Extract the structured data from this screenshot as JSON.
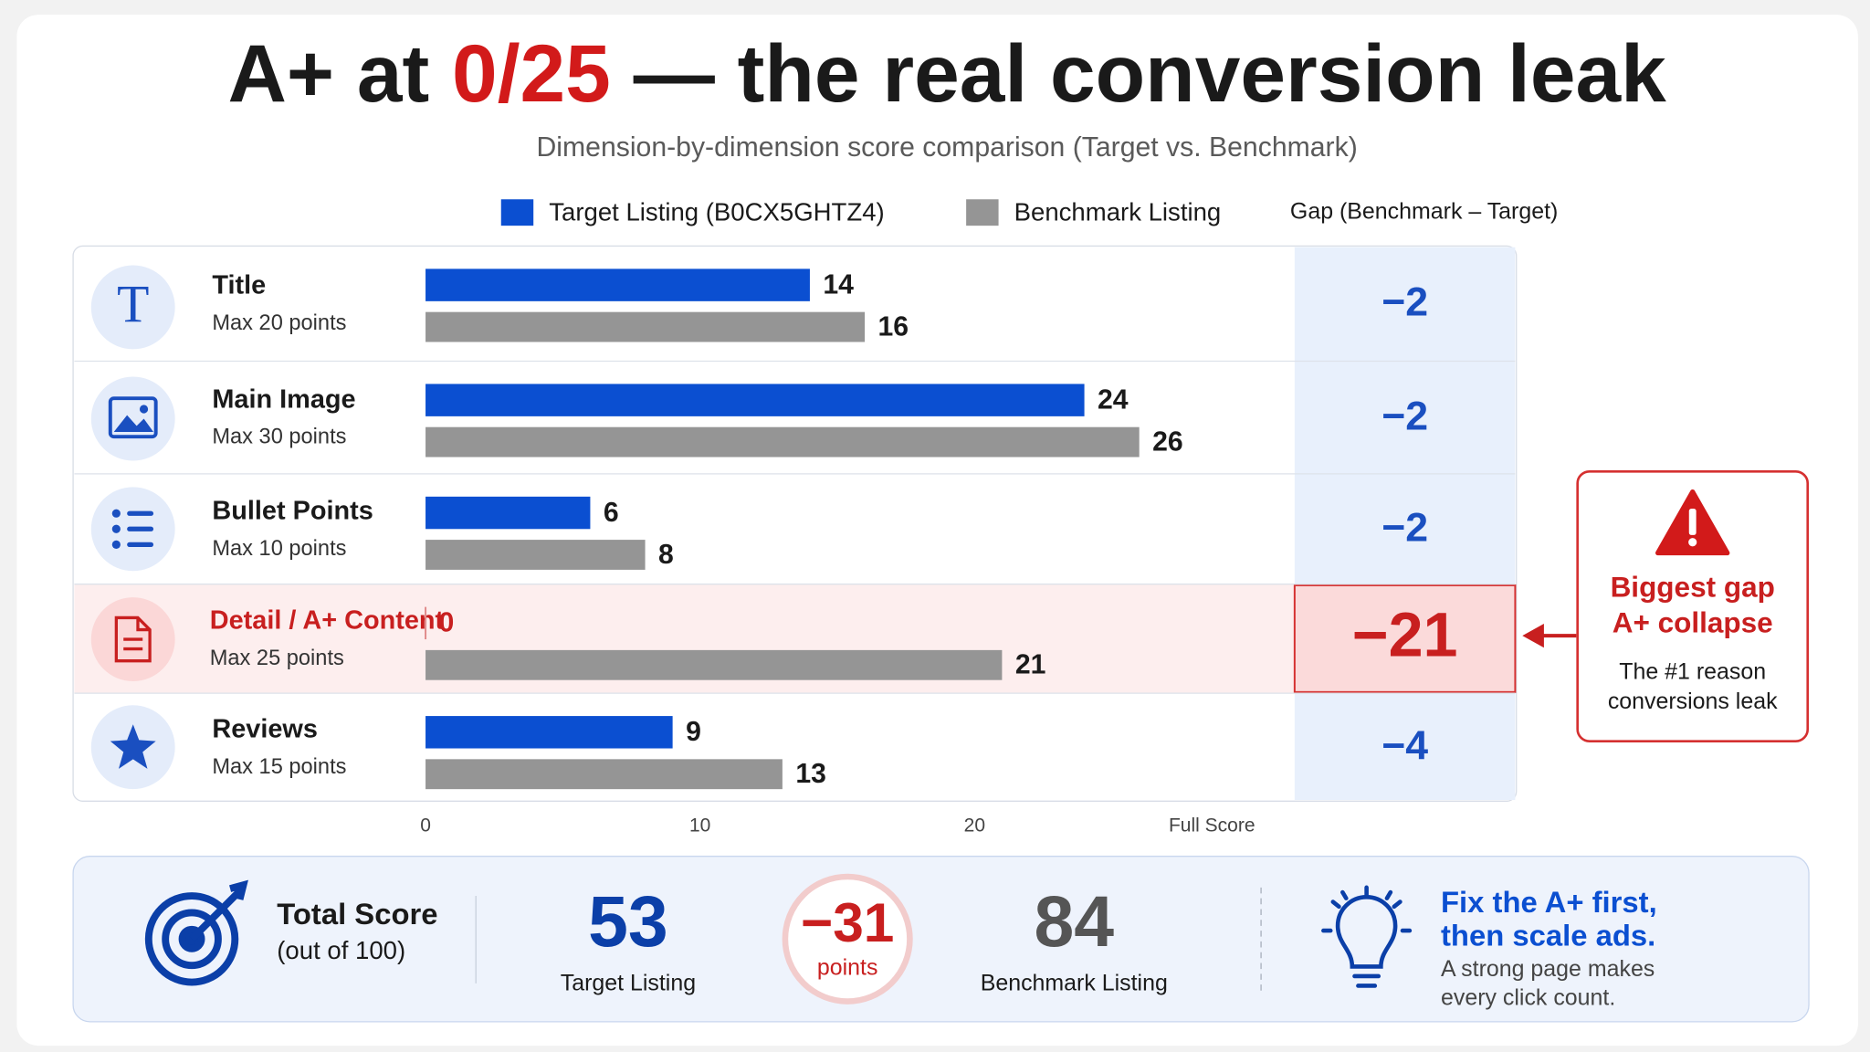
{
  "title": {
    "prefix": "A+ at",
    "highlight": "0/25",
    "suffix": "— the real conversion leak"
  },
  "chart_data": {
    "type": "bar",
    "orientation": "horizontal",
    "subtitle": "Dimension-by-dimension score comparison (Target vs. Benchmark)",
    "categories": [
      "Title",
      "Main Image",
      "Bullet Points",
      "Detail / A+ Content",
      "Reviews"
    ],
    "category_notes": [
      "Max 20 points",
      "Max 30 points",
      "Max 10 points",
      "Max 25 points",
      "Max 15 points"
    ],
    "series": [
      {
        "name": "Target Listing (B0CX5GHTZ4)",
        "color": "#0b4fd1",
        "values": [
          14,
          24,
          6,
          0,
          9
        ]
      },
      {
        "name": "Benchmark Listing",
        "color": "#959595",
        "values": [
          16,
          26,
          8,
          21,
          13
        ]
      }
    ],
    "gap": {
      "name": "Gap (Benchmark – Target)",
      "values": [
        -2,
        -2,
        -2,
        -21,
        -4
      ],
      "value_labels": [
        "−2",
        "−2",
        "−2",
        "−21",
        "−4"
      ]
    },
    "highlight_index": 3,
    "xlim": [
      0,
      30
    ],
    "xticks": [
      0,
      10,
      20,
      {
        "value": 30,
        "label": "Full Score"
      }
    ]
  },
  "callout": {
    "title_lines": [
      "Biggest gap",
      "A+ collapse"
    ],
    "text_lines": [
      "The #1 reason",
      "conversions leak"
    ]
  },
  "summary": {
    "label": "Total Score",
    "sublabel": "(out of 100)",
    "target": {
      "value": 53,
      "label": "Target Listing"
    },
    "difference": {
      "value": -31,
      "value_label": "−31",
      "unit": "points"
    },
    "benchmark": {
      "value": 84,
      "label": "Benchmark Listing"
    },
    "tip_title_lines": [
      "Fix the A+ first,",
      "then scale ads."
    ],
    "tip_text_lines": [
      "A strong page makes",
      "every click count."
    ]
  }
}
